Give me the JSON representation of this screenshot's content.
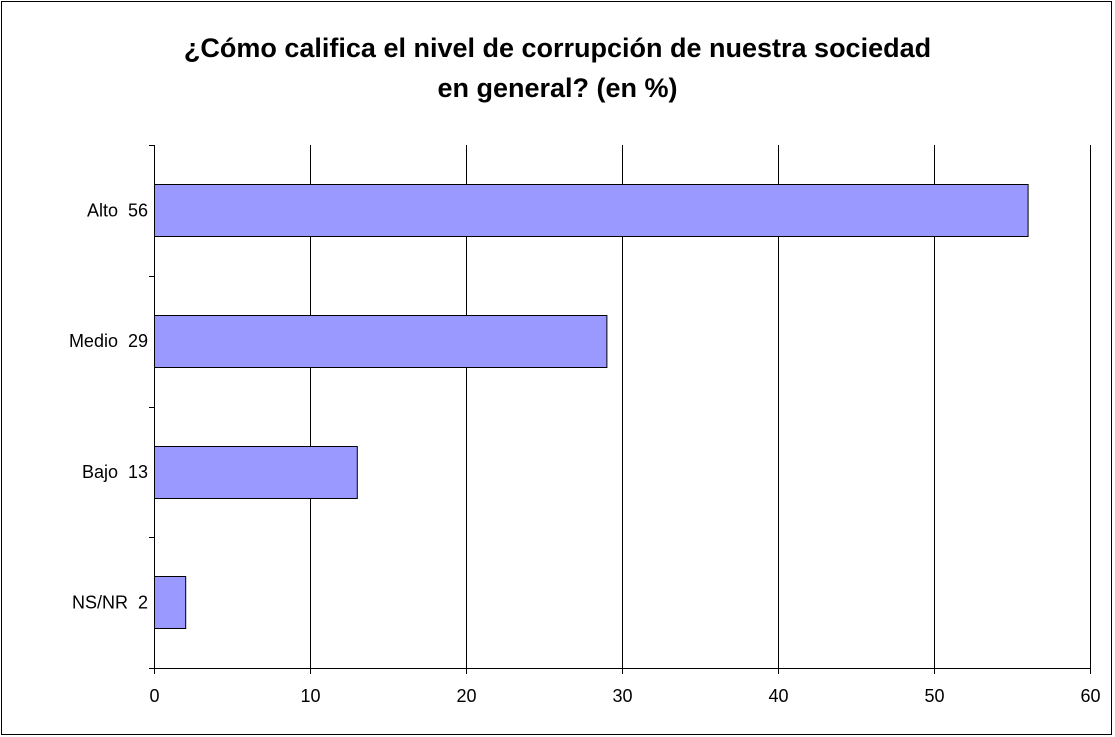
{
  "chart_data": {
    "type": "bar",
    "orientation": "horizontal",
    "title": [
      "¿Cómo califica el nivel de corrupción de nuestra sociedad",
      "en general? (en %)"
    ],
    "categories": [
      "Alto  56",
      "Medio  29",
      "Bajo  13",
      "NS/NR  2"
    ],
    "values": [
      56,
      29,
      13,
      2
    ],
    "xlabel": "",
    "ylabel": "",
    "xlim": [
      0,
      60
    ],
    "xticks": [
      0,
      10,
      20,
      30,
      40,
      50,
      60
    ],
    "grid": true,
    "legend": "none",
    "colors": {
      "bar_fill": "#9999FF",
      "bar_stroke": "#000000",
      "grid": "#000000",
      "axis": "#000000"
    }
  }
}
